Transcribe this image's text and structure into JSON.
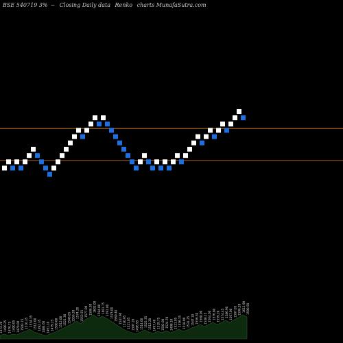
{
  "title": {
    "symbol": "BSE 540719 3%",
    "sep": "~",
    "desc": "Closing Daily data",
    "type": "Renko",
    "rest": "charts MunafaSutra.com"
  },
  "chart_data": {
    "type": "renko",
    "up_color": "#ffffff",
    "down_color": "#1e6fe0",
    "line_color": "#b5651d",
    "area_color": "#0e2a0e",
    "ylim": [
      1450,
      1750
    ],
    "lines": [
      1573,
      1522
    ],
    "bricks": [
      {
        "dir": "up",
        "v": 1510
      },
      {
        "dir": "up",
        "v": 1520
      },
      {
        "dir": "down",
        "v": 1510
      },
      {
        "dir": "up",
        "v": 1520
      },
      {
        "dir": "down",
        "v": 1510
      },
      {
        "dir": "up",
        "v": 1520
      },
      {
        "dir": "up",
        "v": 1530
      },
      {
        "dir": "up",
        "v": 1540
      },
      {
        "dir": "down",
        "v": 1530
      },
      {
        "dir": "down",
        "v": 1520
      },
      {
        "dir": "down",
        "v": 1510
      },
      {
        "dir": "down",
        "v": 1500
      },
      {
        "dir": "up",
        "v": 1510
      },
      {
        "dir": "up",
        "v": 1520
      },
      {
        "dir": "up",
        "v": 1530
      },
      {
        "dir": "up",
        "v": 1540
      },
      {
        "dir": "up",
        "v": 1550
      },
      {
        "dir": "up",
        "v": 1560
      },
      {
        "dir": "up",
        "v": 1570
      },
      {
        "dir": "down",
        "v": 1560
      },
      {
        "dir": "up",
        "v": 1570
      },
      {
        "dir": "up",
        "v": 1580
      },
      {
        "dir": "up",
        "v": 1590
      },
      {
        "dir": "down",
        "v": 1580
      },
      {
        "dir": "up",
        "v": 1590
      },
      {
        "dir": "down",
        "v": 1580
      },
      {
        "dir": "down",
        "v": 1570
      },
      {
        "dir": "down",
        "v": 1560
      },
      {
        "dir": "down",
        "v": 1550
      },
      {
        "dir": "down",
        "v": 1540
      },
      {
        "dir": "down",
        "v": 1530
      },
      {
        "dir": "down",
        "v": 1520
      },
      {
        "dir": "down",
        "v": 1510
      },
      {
        "dir": "up",
        "v": 1520
      },
      {
        "dir": "up",
        "v": 1530
      },
      {
        "dir": "down",
        "v": 1520
      },
      {
        "dir": "down",
        "v": 1510
      },
      {
        "dir": "up",
        "v": 1520
      },
      {
        "dir": "down",
        "v": 1510
      },
      {
        "dir": "up",
        "v": 1520
      },
      {
        "dir": "down",
        "v": 1510
      },
      {
        "dir": "up",
        "v": 1520
      },
      {
        "dir": "up",
        "v": 1530
      },
      {
        "dir": "down",
        "v": 1520
      },
      {
        "dir": "up",
        "v": 1530
      },
      {
        "dir": "up",
        "v": 1540
      },
      {
        "dir": "up",
        "v": 1550
      },
      {
        "dir": "up",
        "v": 1560
      },
      {
        "dir": "down",
        "v": 1550
      },
      {
        "dir": "up",
        "v": 1560
      },
      {
        "dir": "up",
        "v": 1570
      },
      {
        "dir": "down",
        "v": 1560
      },
      {
        "dir": "up",
        "v": 1570
      },
      {
        "dir": "up",
        "v": 1580
      },
      {
        "dir": "down",
        "v": 1570
      },
      {
        "dir": "up",
        "v": 1580
      },
      {
        "dir": "up",
        "v": 1590
      },
      {
        "dir": "up",
        "v": 1600
      },
      {
        "dir": "down",
        "v": 1590
      }
    ],
    "closes": [
      "1474.20",
      "1490.25",
      "1476.75",
      "1490.05",
      "1470.00",
      "1503.15",
      "1516.35",
      "1534.35",
      "1512.00",
      "1492.35",
      "1484.60",
      "1461.10",
      "1479.25",
      "1500.00",
      "1512.00",
      "1521.30",
      "1546.05",
      "1556.20",
      "1574.20",
      "1553.55",
      "1577.00",
      "1586.30",
      "1602.00",
      "1584.80",
      "1601.75",
      "1591.00",
      "1573.00",
      "1560.40",
      "1547.90",
      "1530.95",
      "1521.05",
      "1507.20",
      "1496.95",
      "1514.00",
      "1525.35",
      "1512.20",
      "1497.40",
      "1519.75",
      "1502.00",
      "1524.70",
      "1498.10",
      "1521.05",
      "1536.35",
      "1518.00",
      "1531.25",
      "1547.10",
      "1556.30",
      "1568.00",
      "1548.15",
      "1564.00",
      "1576.80",
      "1559.20",
      "1574.45",
      "1586.90",
      "1567.00",
      "1587.05",
      "1596.20",
      "1611.90",
      "1590.50"
    ],
    "area_heights": [
      5,
      7,
      5,
      7,
      6,
      9,
      11,
      14,
      10,
      8,
      6,
      5,
      8,
      10,
      13,
      16,
      19,
      22,
      26,
      22,
      28,
      31,
      35,
      30,
      33,
      30,
      26,
      22,
      18,
      14,
      11,
      9,
      7,
      10,
      13,
      10,
      8,
      11,
      9,
      12,
      9,
      11,
      14,
      11,
      13,
      16,
      18,
      21,
      18,
      21,
      24,
      21,
      24,
      27,
      24,
      28,
      31,
      35,
      32
    ]
  }
}
